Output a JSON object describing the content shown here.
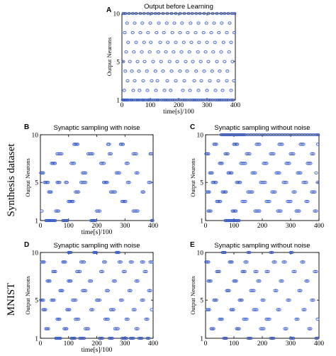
{
  "side_labels": [
    "Synthesis dataset",
    "MNIST"
  ],
  "chart_data": [
    {
      "type": "scatter",
      "panel_letter": "A",
      "title": "Output before Learning",
      "xlabel": "time[s]/100",
      "ylabel": "Output Neurons",
      "xlim": [
        0,
        400
      ],
      "ylim": [
        1,
        10
      ],
      "xticks": [
        "0",
        "100",
        "200",
        "300",
        "400"
      ],
      "yticks": [
        "1",
        "5",
        "10"
      ],
      "marker": "open-circle",
      "color": "#3a5fcd",
      "rows": [
        {
          "neuron": 1,
          "spikes": [
            3,
            6,
            10,
            14,
            18,
            22,
            30,
            35,
            42,
            50,
            56,
            62,
            70,
            75,
            82,
            90,
            95,
            102,
            110,
            118,
            125,
            130,
            140,
            148,
            155,
            162,
            170,
            178,
            185,
            195,
            205,
            215,
            222,
            230,
            240,
            248,
            255,
            262,
            270,
            278,
            286,
            295,
            305,
            312,
            320,
            330,
            338,
            345,
            352,
            360,
            368,
            375,
            385,
            392
          ]
        },
        {
          "neuron": 2,
          "spikes": [
            8,
            40,
            62,
            90,
            120,
            150,
            172,
            215,
            240,
            270,
            300,
            330,
            355,
            385
          ]
        },
        {
          "neuron": 3,
          "spikes": [
            20,
            45,
            75,
            105,
            125,
            160,
            190,
            220,
            255,
            280,
            310,
            340,
            370,
            395
          ]
        },
        {
          "neuron": 4,
          "spikes": [
            12,
            35,
            60,
            88,
            118,
            145,
            175,
            205,
            230,
            262,
            290,
            318,
            345,
            372
          ]
        },
        {
          "neuron": 5,
          "spikes": [
            5,
            28,
            55,
            80,
            110,
            138,
            168,
            195,
            225,
            250,
            278,
            305,
            335,
            362,
            390
          ]
        },
        {
          "neuron": 6,
          "spikes": [
            15,
            42,
            70,
            98,
            128,
            155,
            182,
            210,
            238,
            268,
            295,
            322,
            350,
            378
          ]
        },
        {
          "neuron": 7,
          "spikes": [
            22,
            50,
            78,
            102,
            135,
            162,
            190,
            218,
            245,
            272,
            300,
            328,
            358,
            385
          ]
        },
        {
          "neuron": 8,
          "spikes": [
            10,
            38,
            65,
            92,
            122,
            148,
            178,
            205,
            232,
            260,
            288,
            315,
            342,
            370,
            396
          ]
        },
        {
          "neuron": 9,
          "spikes": [
            18,
            45,
            72,
            100,
            130,
            158,
            185,
            212,
            242,
            270,
            298,
            325,
            352,
            380
          ]
        },
        {
          "neuron": 10,
          "spikes": [
            5,
            12,
            25,
            38,
            50,
            65,
            78,
            92,
            105,
            118,
            130,
            145,
            160,
            175,
            190,
            205,
            220,
            235,
            248,
            262,
            275,
            290,
            305,
            320,
            335,
            350,
            362,
            375,
            388,
            397
          ]
        }
      ]
    },
    {
      "type": "scatter",
      "panel_letter": "B",
      "title": "Synaptic sampling with noise",
      "xlabel": "time[s]/100",
      "ylabel": "Output Neurons",
      "xlim": [
        0,
        400
      ],
      "ylim": [
        1,
        10
      ],
      "xticks": [
        "0",
        "100",
        "200",
        "300",
        "400"
      ],
      "yticks": [
        "1",
        "5",
        "10"
      ],
      "marker": "open-circle",
      "color": "#3a5fcd",
      "rows": [
        {
          "neuron": 1,
          "spikes": [
            20,
            24,
            28,
            32,
            36,
            40,
            44,
            48,
            52,
            80,
            84,
            88,
            92,
            96,
            180,
            184,
            188,
            192,
            196,
            395,
            398
          ]
        },
        {
          "neuron": 2,
          "spikes": [
            5,
            55,
            60,
            64,
            200,
            205,
            210,
            330,
            335,
            340,
            345
          ]
        },
        {
          "neuron": 3,
          "spikes": [
            100,
            104,
            108,
            112,
            116,
            290,
            294,
            298,
            302
          ]
        },
        {
          "neuron": 4,
          "spikes": [
            30,
            34,
            38,
            125,
            130,
            135,
            250,
            255,
            260,
            265,
            362,
            366
          ]
        },
        {
          "neuron": 5,
          "spikes": [
            15,
            19,
            23,
            27,
            60,
            64,
            68,
            90,
            94,
            145,
            150,
            155,
            160,
            225,
            229,
            233,
            237,
            310,
            315,
            385,
            390
          ]
        },
        {
          "neuron": 6,
          "spikes": [
            2,
            6,
            10,
            150,
            155,
            160,
            270,
            275,
            280,
            340,
            345
          ]
        },
        {
          "neuron": 7,
          "spikes": [
            40,
            44,
            48,
            52,
            110,
            115,
            120,
            215,
            220,
            225,
            305,
            310
          ]
        },
        {
          "neuron": 8,
          "spikes": [
            60,
            65,
            70,
            75,
            170,
            175,
            180,
            185,
            245,
            250,
            330,
            335,
            340,
            390,
            394
          ]
        },
        {
          "neuron": 9,
          "spikes": [
            120,
            124,
            128,
            132,
            240,
            244,
            285,
            289,
            293
          ]
        },
        {
          "neuron": 10,
          "spikes": []
        }
      ]
    },
    {
      "type": "scatter",
      "panel_letter": "C",
      "title": "Synaptic sampling without noise",
      "xlabel": "",
      "ylabel": "Output Neurons",
      "xlim": [
        0,
        400
      ],
      "ylim": [
        1,
        10
      ],
      "xticks": [
        "0",
        "100",
        "200",
        "300",
        "400"
      ],
      "yticks": [
        "1",
        "5",
        "10"
      ],
      "marker": "open-circle",
      "color": "#3a5fcd",
      "rows": [
        {
          "neuron": 1,
          "spikes": [
            70,
            74,
            78,
            82,
            86,
            90,
            94,
            98,
            102,
            106,
            110,
            114,
            118
          ]
        },
        {
          "neuron": 2,
          "spikes": [
            10,
            14,
            18,
            95,
            99,
            103,
            107,
            175,
            180,
            185,
            190,
            255,
            260,
            265,
            320,
            325,
            330,
            385,
            390
          ]
        },
        {
          "neuron": 3,
          "spikes": [
            40,
            44,
            48,
            52,
            130,
            135,
            140,
            215,
            220,
            225,
            290,
            295,
            300,
            355,
            360
          ]
        },
        {
          "neuron": 4,
          "spikes": [
            5,
            9,
            13,
            60,
            64,
            68,
            72,
            150,
            155,
            160,
            165,
            235,
            240,
            245,
            310,
            315,
            375,
            380,
            385
          ]
        },
        {
          "neuron": 5,
          "spikes": [
            25,
            29,
            33,
            37,
            110,
            114,
            118,
            122,
            195,
            200,
            205,
            210,
            275,
            280,
            285,
            345,
            350,
            355,
            395
          ]
        },
        {
          "neuron": 6,
          "spikes": [
            15,
            19,
            23,
            80,
            84,
            88,
            92,
            165,
            170,
            175,
            250,
            255,
            260,
            325,
            330,
            335,
            390
          ]
        },
        {
          "neuron": 7,
          "spikes": [
            50,
            54,
            58,
            125,
            130,
            135,
            140,
            205,
            210,
            215,
            285,
            290,
            295,
            360,
            365,
            370
          ]
        },
        {
          "neuron": 8,
          "spikes": [
            2,
            6,
            10,
            70,
            74,
            78,
            145,
            150,
            155,
            230,
            235,
            240,
            300,
            305,
            310,
            375,
            380
          ]
        },
        {
          "neuron": 9,
          "spikes": [
            30,
            34,
            38,
            100,
            104,
            108,
            112,
            180,
            185,
            190,
            260,
            265,
            270,
            335,
            340,
            345,
            396
          ]
        },
        {
          "neuron": 10,
          "spikes": [
            55,
            60,
            65,
            70,
            75,
            80,
            85,
            90,
            95,
            100,
            105,
            110,
            115,
            120,
            125,
            130,
            135,
            140,
            150,
            160,
            170,
            180,
            190,
            200,
            210,
            220,
            230,
            240,
            250,
            260,
            270,
            280,
            290,
            300,
            310,
            320,
            330,
            340,
            350,
            360,
            370,
            380,
            390,
            397
          ]
        }
      ]
    },
    {
      "type": "scatter",
      "panel_letter": "D",
      "title": "Synaptic sampling with noise",
      "xlabel": "time[s]/100",
      "ylabel": "Output Neurons",
      "xlim": [
        0,
        400
      ],
      "ylim": [
        1,
        10
      ],
      "xticks": [
        "0",
        "100",
        "200",
        "300",
        "400"
      ],
      "yticks": [
        "1",
        "5",
        "10"
      ],
      "marker": "open-circle",
      "color": "#3a5fcd",
      "rows": [
        {
          "neuron": 1,
          "spikes": [
            55,
            59,
            63,
            67,
            71,
            110,
            114,
            118,
            122,
            140,
            145,
            150,
            155,
            210,
            215,
            220,
            245,
            250,
            255,
            290,
            295,
            300,
            305,
            320,
            325,
            330,
            350,
            355,
            360,
            380,
            385
          ]
        },
        {
          "neuron": 2,
          "spikes": [
            20,
            24,
            28,
            85,
            89,
            93,
            160,
            165,
            170,
            265,
            270,
            275,
            340,
            345
          ]
        },
        {
          "neuron": 3,
          "spikes": [
            60,
            64,
            68,
            125,
            130,
            135,
            230,
            235,
            240,
            305,
            310,
            375,
            380
          ]
        },
        {
          "neuron": 4,
          "spikes": [
            10,
            14,
            18,
            95,
            99,
            103,
            180,
            185,
            250,
            255,
            260,
            330,
            335,
            395
          ]
        },
        {
          "neuron": 5,
          "spikes": [
            2,
            6,
            10,
            40,
            44,
            48,
            115,
            120,
            125,
            200,
            205,
            210,
            285,
            290,
            360,
            365
          ]
        },
        {
          "neuron": 6,
          "spikes": [
            70,
            74,
            78,
            150,
            155,
            160,
            235,
            240,
            315,
            320,
            385,
            390
          ]
        },
        {
          "neuron": 7,
          "spikes": [
            25,
            29,
            33,
            100,
            104,
            108,
            175,
            180,
            260,
            265,
            340,
            345
          ]
        },
        {
          "neuron": 8,
          "spikes": [
            45,
            49,
            53,
            130,
            135,
            140,
            215,
            220,
            295,
            300,
            370,
            375
          ]
        },
        {
          "neuron": 9,
          "spikes": [
            5,
            9,
            13,
            80,
            84,
            88,
            145,
            150,
            155,
            225,
            230,
            280,
            285,
            320,
            325,
            360,
            365,
            390,
            395
          ]
        },
        {
          "neuron": 10,
          "spikes": [
            100,
            104,
            108,
            190,
            194,
            198,
            270,
            274,
            278
          ]
        }
      ]
    },
    {
      "type": "scatter",
      "panel_letter": "E",
      "title": "Synaptic sampling without noise",
      "xlabel": "",
      "ylabel": "Output Neurons",
      "xlim": [
        0,
        400
      ],
      "ylim": [
        1,
        10
      ],
      "xticks": [
        "0",
        "100",
        "200",
        "300",
        "400"
      ],
      "yticks": [
        "1",
        "5",
        "10"
      ],
      "marker": "open-circle",
      "color": "#3a5fcd",
      "rows": [
        {
          "neuron": 1,
          "spikes": [
            65,
            69,
            73,
            150,
            155,
            160,
            230,
            235,
            240,
            300,
            305,
            310,
            390,
            394
          ]
        },
        {
          "neuron": 2,
          "spikes": [
            20,
            24,
            28,
            110,
            114,
            118,
            195,
            200,
            205,
            280,
            285,
            365,
            370
          ]
        },
        {
          "neuron": 3,
          "spikes": [
            50,
            54,
            58,
            135,
            140,
            145,
            215,
            220,
            225,
            320,
            325,
            395
          ]
        },
        {
          "neuron": 4,
          "spikes": [
            5,
            9,
            13,
            90,
            94,
            98,
            170,
            175,
            180,
            255,
            260,
            345,
            350
          ]
        },
        {
          "neuron": 5,
          "spikes": [
            30,
            34,
            38,
            120,
            124,
            128,
            200,
            205,
            290,
            295,
            375,
            380
          ]
        },
        {
          "neuron": 6,
          "spikes": [
            75,
            79,
            83,
            160,
            165,
            170,
            245,
            250,
            330,
            335
          ]
        },
        {
          "neuron": 7,
          "spikes": [
            10,
            14,
            18,
            100,
            104,
            108,
            185,
            190,
            265,
            270,
            355,
            360
          ]
        },
        {
          "neuron": 8,
          "spikes": [
            40,
            44,
            48,
            130,
            134,
            138,
            175,
            180,
            215,
            220,
            310,
            315,
            385,
            390
          ]
        },
        {
          "neuron": 9,
          "spikes": [
            2,
            6,
            10,
            85,
            89,
            93,
            140,
            145,
            240,
            245,
            275,
            280,
            340,
            345
          ]
        },
        {
          "neuron": 10,
          "spikes": [
            60,
            64,
            68,
            150,
            155,
            230,
            235,
            300,
            305
          ]
        }
      ]
    }
  ]
}
